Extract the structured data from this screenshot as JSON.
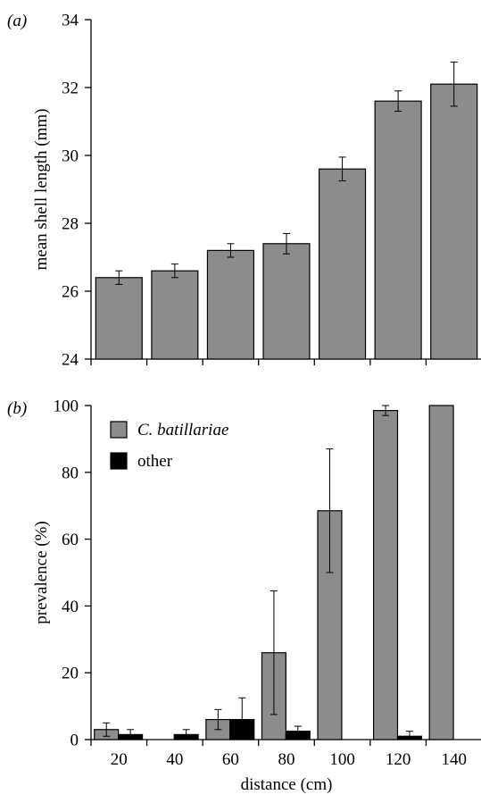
{
  "chart_data": [
    {
      "type": "bar",
      "panel_label": "(a)",
      "ylabel": "mean shell length (mm)",
      "xlabel": "",
      "ylim": [
        24,
        34
      ],
      "yticks": [
        24,
        26,
        28,
        30,
        32,
        34
      ],
      "categories": [
        "20",
        "40",
        "60",
        "80",
        "100",
        "120",
        "140"
      ],
      "series": [
        {
          "values": [
            26.4,
            26.6,
            27.2,
            27.4,
            29.6,
            31.6,
            32.1
          ],
          "error": [
            0.2,
            0.2,
            0.2,
            0.3,
            0.35,
            0.3,
            0.65
          ],
          "color": "#8c8c8c"
        }
      ],
      "show_category_labels": false
    },
    {
      "type": "bar",
      "panel_label": "(b)",
      "ylabel": "prevalence (%)",
      "xlabel": "distance (cm)",
      "ylim": [
        0,
        100
      ],
      "yticks": [
        0,
        20,
        40,
        60,
        80,
        100
      ],
      "categories": [
        "20",
        "40",
        "60",
        "80",
        "100",
        "120",
        "140"
      ],
      "legend_position": "top-left",
      "series": [
        {
          "name": "C. batillariae",
          "values": [
            3,
            0,
            6,
            26,
            68.5,
            98.5,
            100
          ],
          "error": [
            2,
            0,
            3,
            18.5,
            18.5,
            1.5,
            0
          ],
          "color": "#8c8c8c"
        },
        {
          "name": "other",
          "values": [
            1.5,
            1.5,
            6,
            2.5,
            0,
            1,
            0
          ],
          "error": [
            1.5,
            1.5,
            6.5,
            1.5,
            0,
            1.5,
            0
          ],
          "color": "#000000"
        }
      ]
    }
  ]
}
